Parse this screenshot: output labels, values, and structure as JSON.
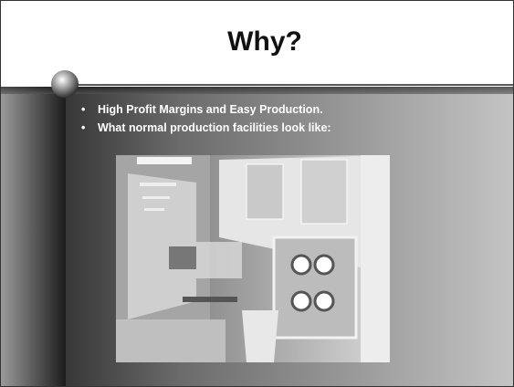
{
  "slide": {
    "title": "Why?",
    "bullets": [
      "High Profit Margins and Easy Production.",
      "What normal production facilities look like:"
    ]
  }
}
